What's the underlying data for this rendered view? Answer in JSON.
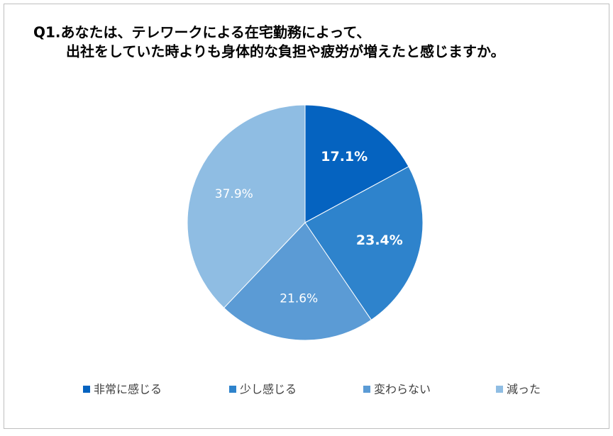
{
  "chart_data": {
    "type": "pie",
    "title": [
      "Q1.あなたは、テレワークによる在宅勤務によって、",
      "出社をしていた時よりも身体的な負担や疲労が増えたと感じますか。"
    ],
    "categories": [
      "非常に感じる",
      "少し感じる",
      "変わらない",
      "減った"
    ],
    "values": [
      17.1,
      23.4,
      21.6,
      37.9
    ],
    "value_labels": [
      "17.1%",
      "23.4%",
      "21.6%",
      "37.9%"
    ],
    "colors": [
      "#0563c0",
      "#2e83cc",
      "#5b9bd5",
      "#8fbde3"
    ],
    "legend": "bottom"
  }
}
